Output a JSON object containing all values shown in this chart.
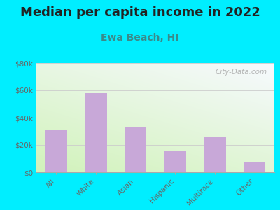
{
  "title": "Median per capita income in 2022",
  "subtitle": "Ewa Beach, HI",
  "categories": [
    "All",
    "White",
    "Asian",
    "Hispanic",
    "Multirace",
    "Other"
  ],
  "values": [
    31000,
    58000,
    33000,
    16000,
    26000,
    7000
  ],
  "bar_color": "#c8a8d8",
  "background_outer": "#00eeff",
  "ylim": [
    0,
    80000
  ],
  "yticks": [
    0,
    20000,
    40000,
    60000,
    80000
  ],
  "ytick_labels": [
    "$0",
    "$20k",
    "$40k",
    "$60k",
    "$80k"
  ],
  "title_fontsize": 13,
  "subtitle_fontsize": 10,
  "subtitle_color": "#3a8a8a",
  "title_color": "#222222",
  "watermark": "City-Data.com",
  "watermark_color": "#aaaaaa",
  "grid_color": "#cccccc",
  "tick_label_color": "#666666"
}
